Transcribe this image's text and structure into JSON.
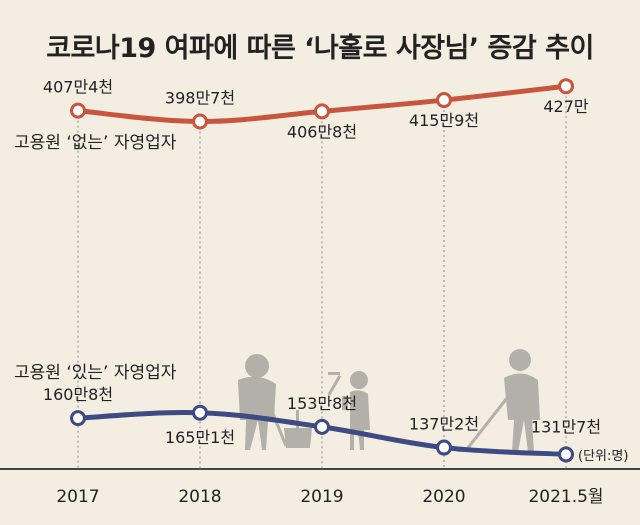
{
  "title": "코로나19 여파에 따른 ‘나홀로 사장님’ 증감 추이",
  "unit_note": "(단위:명)",
  "chart_data": {
    "type": "line",
    "categories": [
      "2017",
      "2018",
      "2019",
      "2020",
      "2021.5월"
    ],
    "x_positions": [
      2017,
      2018,
      2019,
      2020,
      2021
    ],
    "ylim": [
      1200000,
      4400000
    ],
    "grid": false,
    "series": [
      {
        "name": "고용원 ‘없는’ 자영업자",
        "color": "#c8553d",
        "values": [
          4074000,
          3987000,
          4068000,
          4159000,
          4270000
        ],
        "labels": [
          "407만4천",
          "398만7천",
          "406만8천",
          "415만9천",
          "427만"
        ]
      },
      {
        "name": "고용원 ‘있는’ 자영업자",
        "color": "#3e4a82",
        "values": [
          1608000,
          1651000,
          1538000,
          1372000,
          1317000
        ],
        "labels": [
          "160만8천",
          "165만1천",
          "153만8천",
          "137만2천",
          "131만7천"
        ]
      }
    ]
  }
}
